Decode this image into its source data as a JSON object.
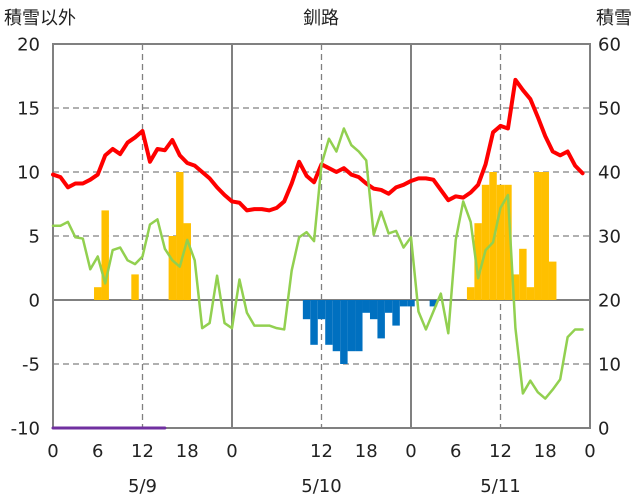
{
  "chart_data": {
    "type": "line",
    "title": "釧路",
    "ylabel": "積雪以外",
    "ylabel_right": "積雪",
    "ylim": [
      -10,
      20
    ],
    "yticks": [
      20,
      15,
      10,
      5,
      0,
      -5,
      -10
    ],
    "ylim_right": [
      0,
      60
    ],
    "yticks_right": [
      60,
      50,
      40,
      30,
      20,
      10,
      0
    ],
    "grid": true,
    "days": [
      {
        "date": "5/9",
        "hour_ticks": [
          "0",
          "6",
          "12",
          "18"
        ]
      },
      {
        "date": "5/10",
        "hour_ticks": [
          "0",
          "12",
          "18"
        ]
      },
      {
        "date": "5/11",
        "hour_ticks": [
          "0",
          "6",
          "12",
          "18"
        ]
      }
    ],
    "final_hour_tick": "0",
    "series": [
      {
        "type": "bar",
        "y_axis": "left",
        "color": "#ffc000",
        "hourly": [
          [
            null,
            null,
            null,
            null,
            null,
            null,
            1,
            7,
            null,
            null,
            null,
            2,
            null,
            null,
            null,
            null,
            5,
            10,
            6,
            null,
            null,
            null,
            null,
            null
          ],
          [
            null,
            null,
            null,
            null,
            null,
            null,
            null,
            null,
            null,
            null,
            null,
            null,
            null,
            null,
            null,
            null,
            null,
            null,
            null,
            null,
            null,
            null,
            null,
            null
          ],
          [
            null,
            null,
            null,
            null,
            null,
            null,
            null,
            null,
            1,
            6,
            9,
            10,
            9,
            9,
            2,
            4,
            1,
            10,
            10,
            3,
            null,
            null,
            null,
            null
          ]
        ]
      },
      {
        "type": "bar",
        "y_axis": "left",
        "color": "#0070c0",
        "hourly": [
          [
            null,
            null,
            null,
            null,
            null,
            null,
            null,
            null,
            null,
            null,
            null,
            null,
            null,
            null,
            null,
            null,
            null,
            null,
            null,
            null,
            null,
            null,
            null,
            null
          ],
          [
            null,
            null,
            null,
            null,
            null,
            null,
            null,
            null,
            null,
            null,
            -1.5,
            -3.5,
            -1.5,
            -3.5,
            -4,
            -5,
            -4,
            -4,
            -1,
            -1.5,
            -3,
            -1,
            -2,
            -0.5
          ],
          [
            -0.5,
            null,
            null,
            -0.5,
            null,
            null,
            null,
            null,
            null,
            null,
            null,
            null,
            null,
            null,
            null,
            null,
            null,
            null,
            null,
            null,
            null,
            null,
            null,
            null
          ]
        ]
      },
      {
        "type": "line",
        "y_axis": "left",
        "color": "#ff0000",
        "hourly": [
          [
            9.8,
            9.6,
            8.8,
            9.1,
            9.1,
            9.4,
            9.8,
            11.3,
            11.8,
            11.4,
            12.3,
            12.7,
            13.2,
            10.8,
            11.8,
            11.7,
            12.5,
            11.3,
            10.7,
            10.5,
            10.0,
            9.5,
            8.8,
            8.2
          ],
          [
            7.7,
            7.6,
            7.0,
            7.1,
            7.1,
            7.0,
            7.2,
            7.7,
            9.1,
            10.8,
            9.7,
            9.2,
            10.6,
            10.3,
            10.0,
            10.3,
            9.8,
            9.6,
            9.1,
            8.7,
            8.6,
            8.3,
            8.8,
            9.0
          ],
          [
            9.3,
            9.5,
            9.5,
            9.4,
            8.6,
            7.8,
            8.1,
            8.0,
            8.4,
            9.0,
            10.6,
            13.1,
            13.6,
            13.4,
            17.2,
            16.4,
            15.7,
            14.3,
            12.8,
            11.6,
            11.3,
            11.6,
            10.5,
            9.9
          ]
        ]
      },
      {
        "type": "line",
        "y_axis": "left",
        "color": "#92d050",
        "hourly": [
          [
            5.8,
            5.8,
            6.1,
            4.9,
            4.8,
            2.4,
            3.4,
            1.3,
            3.9,
            4.1,
            3.1,
            2.8,
            3.4,
            5.9,
            6.3,
            4.0,
            3.1,
            2.6,
            4.7,
            3.1,
            -2.2,
            -1.8,
            1.9,
            -1.8
          ],
          [
            -2.2,
            1.6,
            -1.0,
            -2.0,
            -2.0,
            -2.0,
            -2.2,
            -2.3,
            2.3,
            4.9,
            5.3,
            4.6,
            10.6,
            12.6,
            11.6,
            13.4,
            12.1,
            11.6,
            10.9,
            5.1,
            6.9,
            5.2,
            5.4,
            4.1
          ],
          [
            4.9,
            -0.9,
            -2.3,
            -0.9,
            0.5,
            -2.6,
            4.7,
            7.7,
            6.1,
            1.7,
            3.9,
            4.5,
            7.2,
            8.2,
            -2.2,
            -7.3,
            -6.3,
            -7.2,
            -7.7,
            -7.0,
            -6.2,
            -2.9,
            -2.3,
            -2.3
          ]
        ]
      },
      {
        "type": "line",
        "y_axis": "right",
        "color": "#7030a0",
        "hourly": [
          [
            0,
            0,
            0,
            0,
            0,
            0,
            0,
            0,
            0,
            0,
            0,
            0,
            0,
            0,
            0,
            0,
            null,
            null,
            null,
            null,
            null,
            null,
            null,
            null
          ],
          [
            null,
            null,
            null,
            null,
            null,
            null,
            null,
            null,
            null,
            null,
            null,
            null,
            null,
            null,
            null,
            null,
            null,
            null,
            null,
            null,
            null,
            null,
            null,
            null
          ],
          [
            null,
            null,
            null,
            null,
            null,
            null,
            null,
            null,
            null,
            null,
            null,
            null,
            null,
            null,
            null,
            null,
            null,
            null,
            null,
            null,
            null,
            null,
            null,
            null
          ]
        ]
      }
    ]
  }
}
